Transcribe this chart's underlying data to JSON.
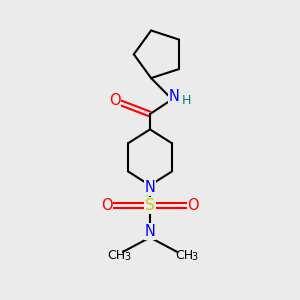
{
  "bg_color": "#ebebeb",
  "bond_color": "#000000",
  "N_color": "#0000ff",
  "O_color": "#ff0000",
  "S_color": "#cccc00",
  "H_color": "#008080",
  "line_width": 1.5,
  "figsize": [
    3.0,
    3.0
  ],
  "dpi": 100,
  "xlim": [
    0,
    10
  ],
  "ylim": [
    0,
    10
  ]
}
